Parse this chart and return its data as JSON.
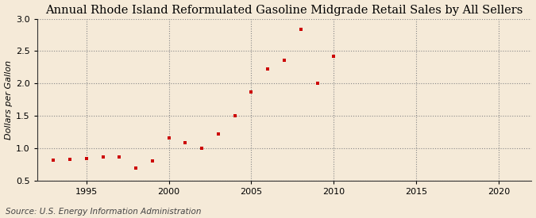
{
  "title": "Annual Rhode Island Reformulated Gasoline Midgrade Retail Sales by All Sellers",
  "ylabel": "Dollars per Gallon",
  "source": "Source: U.S. Energy Information Administration",
  "background_color": "#f5ead8",
  "marker_color": "#cc0000",
  "years": [
    1993,
    1994,
    1995,
    1996,
    1997,
    1998,
    1999,
    2000,
    2001,
    2002,
    2003,
    2004,
    2005,
    2006,
    2007,
    2008,
    2009,
    2010
  ],
  "values": [
    0.82,
    0.83,
    0.85,
    0.87,
    0.87,
    0.7,
    0.81,
    1.16,
    1.09,
    1.01,
    1.22,
    1.5,
    1.87,
    2.22,
    2.36,
    2.83,
    2.01,
    2.42
  ],
  "xlim": [
    1992,
    2022
  ],
  "ylim": [
    0.5,
    3.0
  ],
  "xticks": [
    1995,
    2000,
    2005,
    2010,
    2015,
    2020
  ],
  "yticks": [
    0.5,
    1.0,
    1.5,
    2.0,
    2.5,
    3.0
  ],
  "title_fontsize": 10.5,
  "label_fontsize": 8,
  "tick_fontsize": 8,
  "source_fontsize": 7.5
}
